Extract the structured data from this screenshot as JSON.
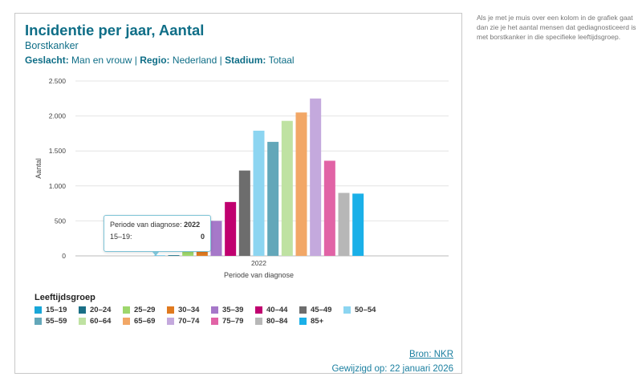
{
  "header": {
    "title": "Incidentie per jaar, Aantal",
    "subtitle": "Borstkanker",
    "filter_gender_label": "Geslacht:",
    "filter_gender_value": "Man en vrouw",
    "sep1": "|",
    "filter_region_label": "Regio:",
    "filter_region_value": "Nederland",
    "sep2": "|",
    "filter_stage_label": "Stadium:",
    "filter_stage_value": "Totaal"
  },
  "chart_data": {
    "type": "bar",
    "categories": [
      "2022"
    ],
    "xlabel": "Periode van diagnose",
    "ylabel": "Aantal",
    "ylim": [
      0,
      2500
    ],
    "yticks": [
      0,
      500,
      1000,
      1500,
      2000,
      2500
    ],
    "ytick_labels": [
      "0",
      "500",
      "1.000",
      "1.500",
      "2.000",
      "2.500"
    ],
    "grid": true,
    "legend_title": "Leeftijdsgroep",
    "legend_position": "bottom",
    "series": [
      {
        "name": "15–19",
        "value": 0,
        "color": "#18a6d8"
      },
      {
        "name": "20–24",
        "value": 10,
        "color": "#1a6f86"
      },
      {
        "name": "25–29",
        "value": 60,
        "color": "#9ed76c"
      },
      {
        "name": "30–34",
        "value": 270,
        "color": "#e07a1f"
      },
      {
        "name": "35–39",
        "value": 500,
        "color": "#a678c9"
      },
      {
        "name": "40–44",
        "value": 770,
        "color": "#c0006f"
      },
      {
        "name": "45–49",
        "value": 1220,
        "color": "#6d6d6d"
      },
      {
        "name": "50–54",
        "value": 1790,
        "color": "#8cd5f1"
      },
      {
        "name": "55–59",
        "value": 1630,
        "color": "#63a7b9"
      },
      {
        "name": "60–64",
        "value": 1930,
        "color": "#bfe2a2"
      },
      {
        "name": "65–69",
        "value": 2050,
        "color": "#f2a766"
      },
      {
        "name": "70–74",
        "value": 2250,
        "color": "#c4a9dd"
      },
      {
        "name": "75–79",
        "value": 1360,
        "color": "#e163a6"
      },
      {
        "name": "80–84",
        "value": 900,
        "color": "#b7b7b7"
      },
      {
        "name": "85+",
        "value": 890,
        "color": "#1ab0e8"
      }
    ]
  },
  "tooltip": {
    "label": "Periode van diagnose:",
    "period": "2022",
    "group": "15–19:",
    "value": "0"
  },
  "footer": {
    "source": "Bron: NKR",
    "modified": "Gewijzigd op: 22 januari 2026"
  },
  "side_text": "Als je met je muis over een kolom in de grafiek gaat dan zie je het aantal mensen dat gediagnosticeerd is met borstkanker in die specifieke leeftijdsgroep."
}
